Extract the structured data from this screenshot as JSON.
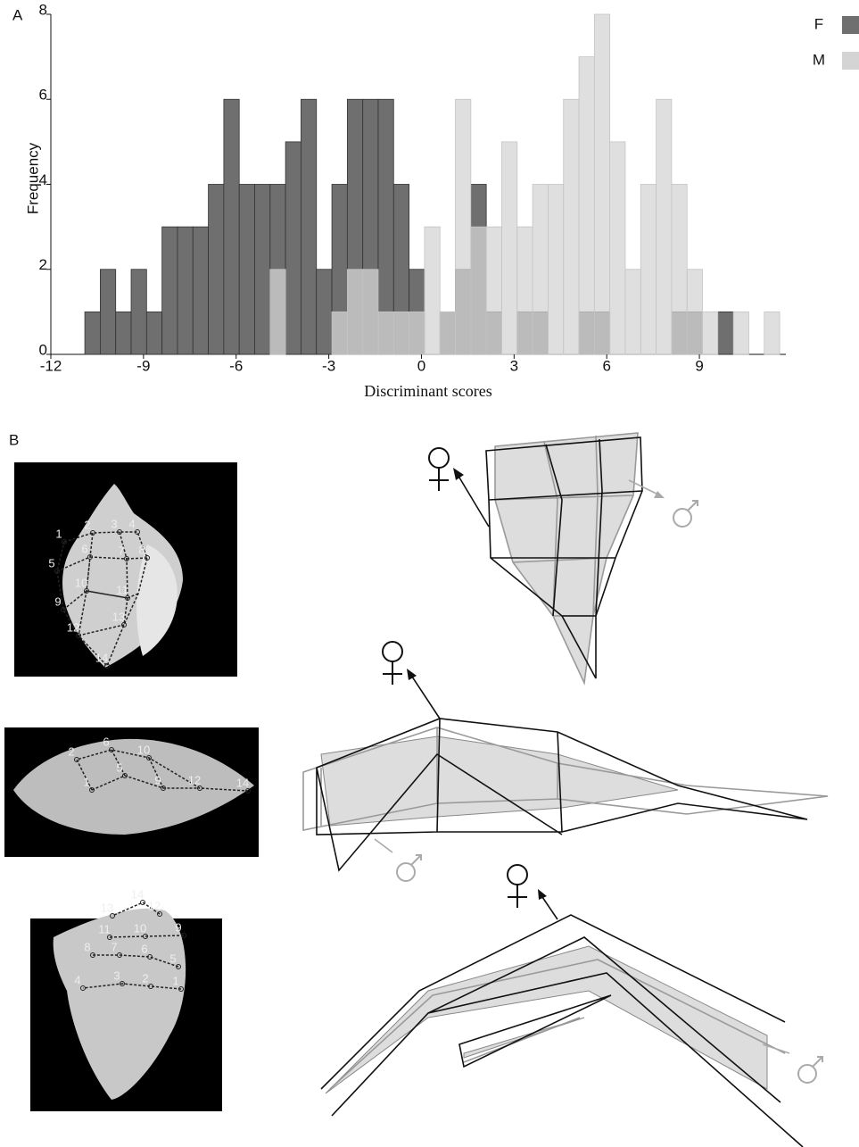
{
  "chart_data": {
    "type": "histogram",
    "panel_label": "A",
    "y_label": "Frequency",
    "x_label": "Discriminant scores",
    "bins": [
      -10.9,
      -10.4,
      -9.9,
      -9.4,
      -8.9,
      -8.4,
      -7.9,
      -7.4,
      -6.9,
      -6.4,
      -5.9,
      -5.4,
      -4.9,
      -4.4,
      -3.9,
      -3.4,
      -2.9,
      -2.4,
      -1.9,
      -1.4,
      -0.9,
      -0.4,
      0.1,
      0.6,
      1.1,
      1.6,
      2.1,
      2.6,
      3.1,
      3.6,
      4.1,
      4.6,
      5.1,
      5.6,
      6.1,
      6.6,
      7.1,
      7.6,
      8.1,
      8.6,
      9.1,
      9.6,
      10.1,
      10.6,
      11.1,
      11.6
    ],
    "series": [
      {
        "name": "F",
        "color": "#6f6f6f",
        "values": [
          1,
          2,
          1,
          2,
          1,
          3,
          3,
          3,
          4,
          6,
          4,
          4,
          4,
          5,
          6,
          2,
          4,
          6,
          6,
          6,
          4,
          2,
          0,
          1,
          2,
          4,
          1,
          0,
          1,
          1,
          0,
          0,
          1,
          1,
          0,
          0,
          0,
          0,
          1,
          1,
          0,
          1,
          0,
          0,
          0
        ]
      },
      {
        "name": "M",
        "color": "#d4d4d4",
        "values": [
          0,
          0,
          0,
          0,
          0,
          0,
          0,
          0,
          0,
          0,
          0,
          0,
          2,
          0,
          0,
          0,
          1,
          2,
          2,
          1,
          1,
          1,
          3,
          1,
          6,
          3,
          3,
          5,
          3,
          4,
          4,
          6,
          7,
          8,
          5,
          2,
          4,
          6,
          4,
          2,
          1,
          0,
          1,
          0,
          1
        ]
      }
    ],
    "xlim": [
      -12,
      11.8
    ],
    "xticks": [
      -12,
      -9,
      -6,
      -3,
      0,
      3,
      6,
      9
    ],
    "ylim": [
      0,
      8
    ],
    "yticks": [
      0,
      2,
      4,
      6,
      8
    ],
    "legend": "top-right"
  },
  "panel_b": {
    "panel_label": "B",
    "photos": [
      {
        "landmarks": [
          "1",
          "2",
          "3",
          "4",
          "5",
          "6",
          "7",
          "8",
          "9",
          "10",
          "11",
          "12",
          "13",
          "14"
        ]
      },
      {
        "landmarks": [
          "1",
          "2",
          "5",
          "6",
          "9",
          "10",
          "12",
          "14"
        ]
      },
      {
        "landmarks": [
          "1",
          "2",
          "3",
          "4",
          "5",
          "6",
          "7",
          "8",
          "9",
          "10",
          "11",
          "12",
          "13",
          "14"
        ]
      }
    ]
  }
}
